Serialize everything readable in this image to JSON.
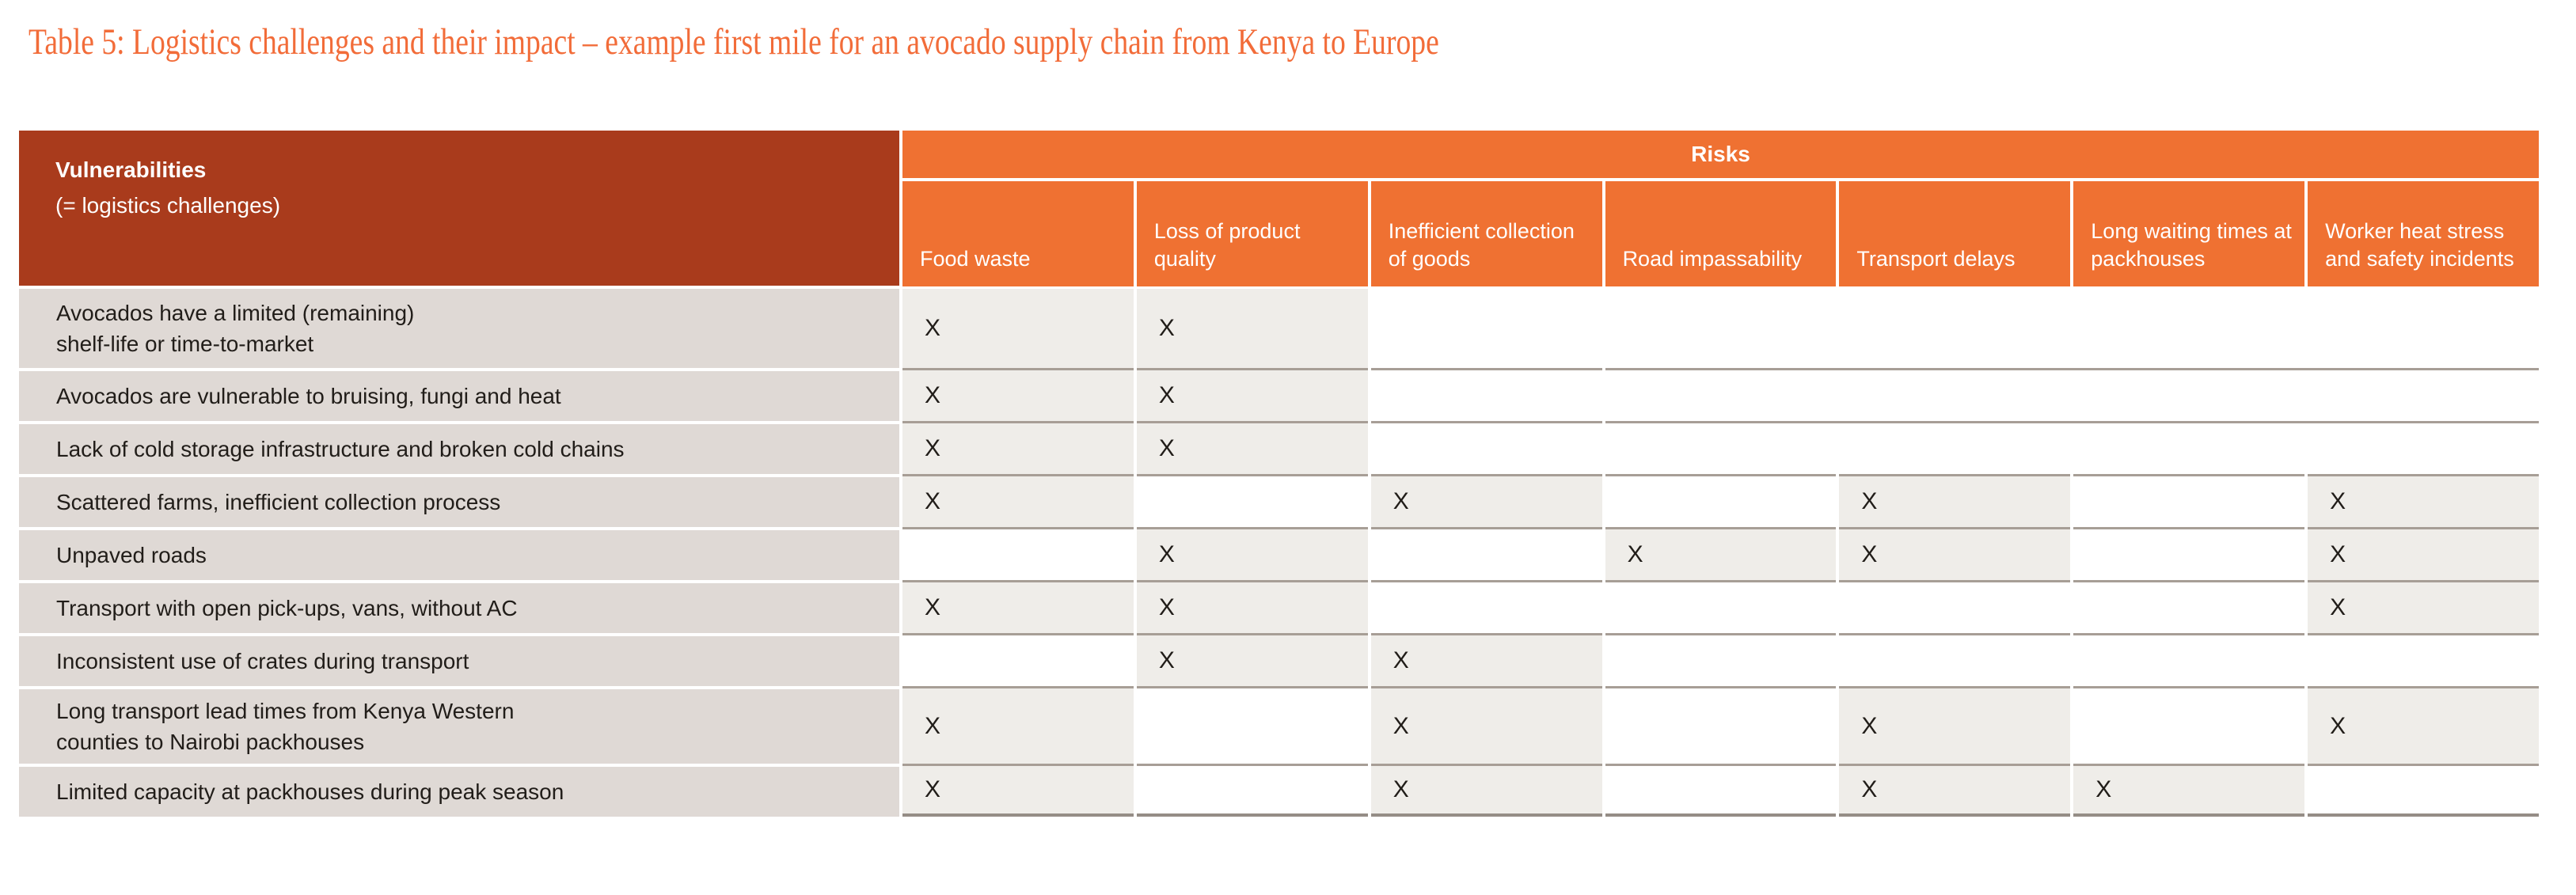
{
  "title": "Table 5: Logistics challenges and their impact – example first mile for an avocado supply chain from Kenya to Europe",
  "table": {
    "vulnerabilities_header": {
      "title": "Vulnerabilities",
      "subtitle": "(= logistics challenges)"
    },
    "risks_header": "Risks",
    "risk_columns": [
      "Food waste",
      "Loss of product quality",
      "Inefficient collection of goods",
      "Road impassability",
      "Transport delays",
      "Long waiting times at packhouses",
      "Worker heat stress and safety incidents"
    ],
    "mark": "X",
    "rows": [
      {
        "label": "Avocados have a limited (remaining)\nshelf-life or time-to-market",
        "marks": [
          1,
          1,
          0,
          0,
          0,
          0,
          0
        ],
        "merged_tail_from": 3
      },
      {
        "label": "Avocados are vulnerable to bruising, fungi and heat",
        "marks": [
          1,
          1,
          0,
          0,
          0,
          0,
          0
        ],
        "merged_tail_from": 3
      },
      {
        "label": "Lack of cold storage infrastructure and broken cold chains",
        "marks": [
          1,
          1,
          0,
          0,
          0,
          0,
          0
        ],
        "merged_tail_from": 3
      },
      {
        "label": "Scattered farms, inefficient collection process",
        "marks": [
          1,
          0,
          1,
          0,
          1,
          0,
          1
        ],
        "merged_tail_from": null
      },
      {
        "label": "Unpaved roads",
        "marks": [
          0,
          1,
          0,
          1,
          1,
          0,
          1
        ],
        "merged_tail_from": null
      },
      {
        "label": "Transport with open pick-ups, vans, without AC",
        "marks": [
          1,
          1,
          0,
          0,
          0,
          0,
          1
        ],
        "merged_tail_from": null
      },
      {
        "label": "Inconsistent use of crates during transport",
        "marks": [
          0,
          1,
          1,
          0,
          0,
          0,
          0
        ],
        "merged_tail_from": null
      },
      {
        "label": "Long transport lead times from Kenya Western\ncounties to Nairobi packhouses",
        "marks": [
          1,
          0,
          1,
          0,
          1,
          0,
          1
        ],
        "merged_tail_from": null
      },
      {
        "label": "Limited capacity at packhouses during peak season",
        "marks": [
          1,
          0,
          1,
          0,
          1,
          1,
          0
        ],
        "merged_tail_from": null
      }
    ]
  },
  "colors": {
    "title_orange": "#F26C39",
    "header_orange": "#EF7132",
    "vulnerabilities_red": "#A93B1C",
    "label_cell_gray": "#DFD9D5",
    "mark_cell_gray": "#EFEDE9",
    "row_line_tan": "#A79E96",
    "bottom_line_gray": "#958D86",
    "text_dark": "#211D19"
  }
}
